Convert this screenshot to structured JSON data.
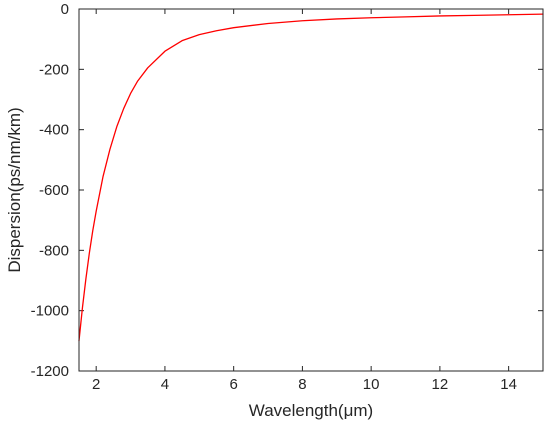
{
  "chart_data": {
    "type": "line",
    "title": "",
    "xlabel": "Wavelength(μm)",
    "ylabel": "Dispersion(ps/nm/km)",
    "xlim": [
      1.5,
      15
    ],
    "ylim": [
      -1200,
      0
    ],
    "xticks": [
      2,
      4,
      6,
      8,
      10,
      12,
      14
    ],
    "yticks": [
      0,
      -200,
      -400,
      -600,
      -800,
      -1000,
      -1200
    ],
    "xtick_labels": [
      "2",
      "4",
      "6",
      "8",
      "10",
      "12",
      "14"
    ],
    "ytick_labels": [
      "0",
      "-200",
      "-400",
      "-600",
      "-800",
      "-1000",
      "-1200"
    ],
    "grid": false,
    "series": [
      {
        "color": "#ff0000",
        "x": [
          1.5,
          1.6,
          1.7,
          1.8,
          1.9,
          2.0,
          2.2,
          2.4,
          2.6,
          2.8,
          3.0,
          3.2,
          3.5,
          4.0,
          4.5,
          5.0,
          5.5,
          6.0,
          7.0,
          8.0,
          9.0,
          10.0,
          11.0,
          12.0,
          13.0,
          14.0,
          15.0
        ],
        "y": [
          -1100,
          -990,
          -895,
          -810,
          -735,
          -670,
          -555,
          -465,
          -390,
          -330,
          -280,
          -240,
          -195,
          -140,
          -105,
          -85,
          -72,
          -62,
          -48,
          -39,
          -33,
          -29,
          -26,
          -23,
          -21,
          -19,
          -17
        ]
      }
    ]
  }
}
